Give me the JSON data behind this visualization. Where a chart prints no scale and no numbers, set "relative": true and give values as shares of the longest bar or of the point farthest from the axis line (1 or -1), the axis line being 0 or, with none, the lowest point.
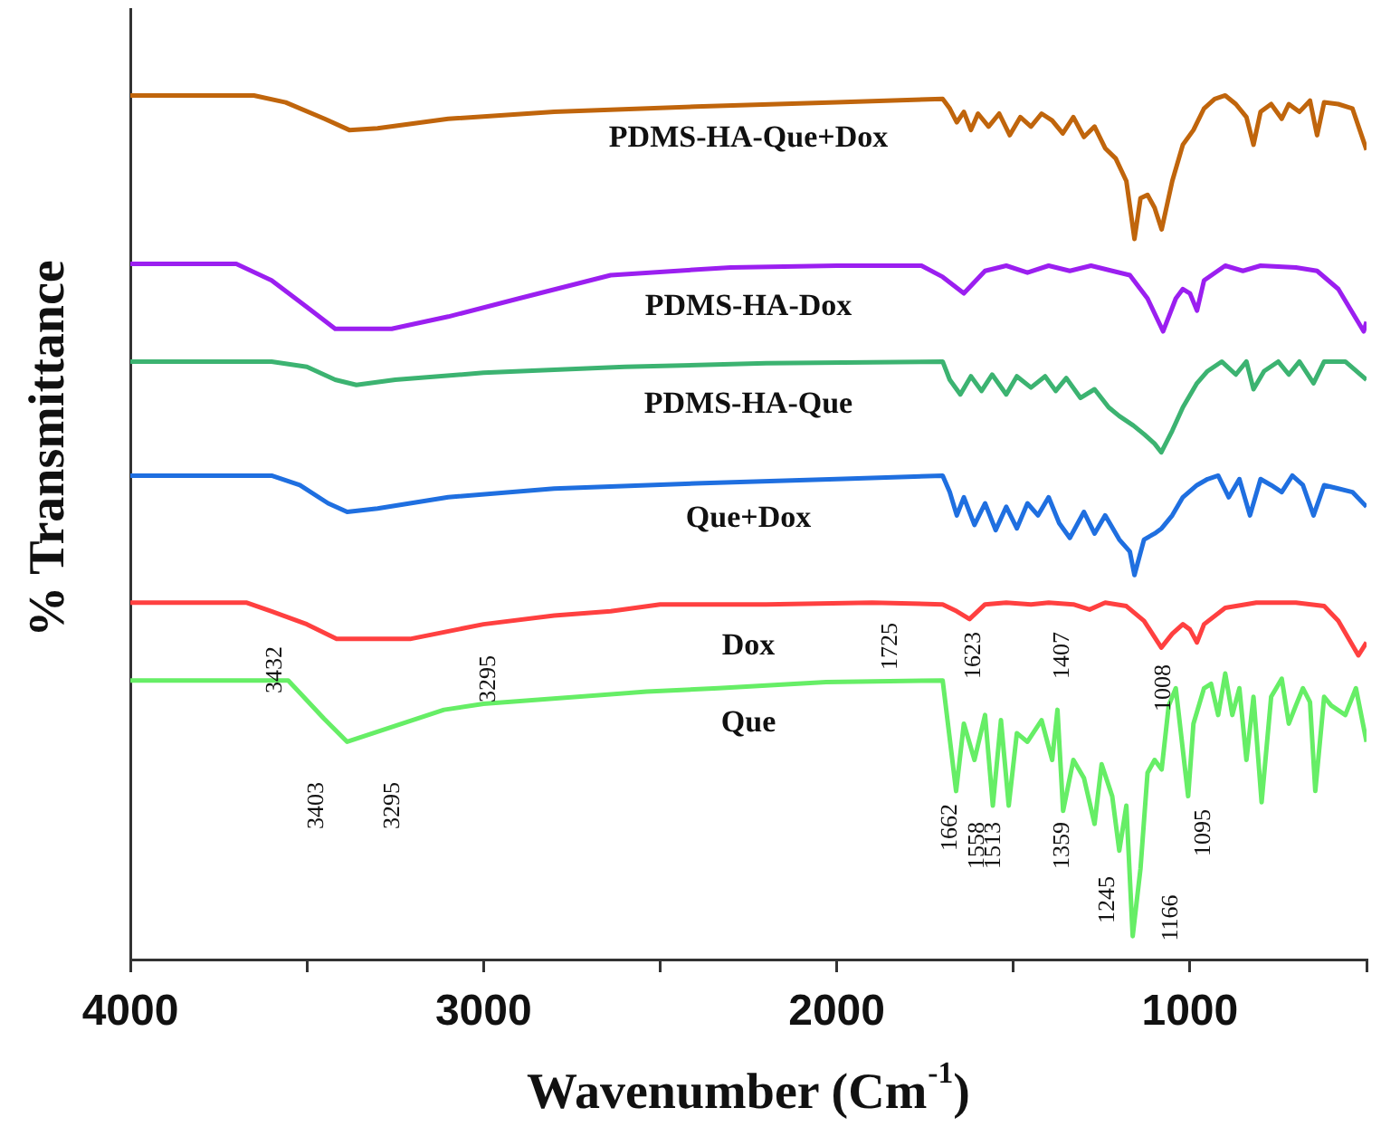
{
  "chart_data": {
    "type": "line",
    "relative": true,
    "xlabel": "Wavenumber (Cm$^{-1}$)",
    "ylabel": "% Transmittance",
    "xlim": [
      4000,
      500
    ],
    "xticks": [
      4000,
      {
        "value": 3500,
        "label": null
      },
      3000,
      {
        "value": 2500,
        "label": null
      },
      2000,
      {
        "value": 1500,
        "label": null
      },
      1000,
      {
        "value": 500,
        "label": null
      }
    ],
    "grid": false,
    "legend": false,
    "marker": "none",
    "line_style": "solid",
    "series": [
      {
        "name": "PDMS-HA-Que+Dox",
        "color": "#c0650c",
        "x": [
          4000,
          3650,
          3560,
          3450,
          3380,
          3300,
          3100,
          2800,
          2400,
          2000,
          1700,
          1680,
          1660,
          1640,
          1620,
          1600,
          1570,
          1540,
          1510,
          1480,
          1450,
          1420,
          1390,
          1360,
          1330,
          1300,
          1270,
          1240,
          1210,
          1180,
          1157,
          1140,
          1120,
          1100,
          1080,
          1050,
          1020,
          990,
          960,
          930,
          900,
          870,
          840,
          820,
          800,
          770,
          740,
          720,
          690,
          660,
          640,
          620,
          580,
          540,
          500
        ],
        "values": [
          1,
          1,
          0.992,
          0.973,
          0.96,
          0.962,
          0.973,
          0.981,
          0.987,
          0.992,
          0.996,
          0.985,
          0.969,
          0.981,
          0.96,
          0.979,
          0.964,
          0.979,
          0.954,
          0.975,
          0.964,
          0.979,
          0.971,
          0.956,
          0.975,
          0.952,
          0.964,
          0.939,
          0.927,
          0.901,
          0.834,
          0.881,
          0.885,
          0.87,
          0.845,
          0.901,
          0.943,
          0.96,
          0.985,
          0.996,
          1,
          0.99,
          0.975,
          0.943,
          0.981,
          0.99,
          0.973,
          0.99,
          0.981,
          0.994,
          0.954,
          0.992,
          0.99,
          0.985,
          0.937
        ]
      },
      {
        "name": "PDMS-HA-Dox",
        "color": "#9b1ff0",
        "x": [
          4000,
          3700,
          3600,
          3500,
          3420,
          3260,
          3100,
          2900,
          2640,
          2300,
          2000,
          1760,
          1700,
          1640,
          1580,
          1520,
          1460,
          1400,
          1340,
          1280,
          1220,
          1170,
          1120,
          1076,
          1040,
          1020,
          1000,
          980,
          960,
          900,
          850,
          800,
          700,
          640,
          580,
          508,
          500
        ],
        "values": [
          0.805,
          0.805,
          0.786,
          0.755,
          0.73,
          0.73,
          0.744,
          0.765,
          0.792,
          0.801,
          0.803,
          0.803,
          0.79,
          0.771,
          0.797,
          0.803,
          0.795,
          0.803,
          0.797,
          0.803,
          0.797,
          0.792,
          0.765,
          0.727,
          0.765,
          0.776,
          0.771,
          0.751,
          0.786,
          0.803,
          0.797,
          0.803,
          0.801,
          0.797,
          0.776,
          0.727,
          0.738
        ]
      },
      {
        "name": "PDMS-HA-Que",
        "color": "#3cb371",
        "x": [
          4000,
          3600,
          3500,
          3420,
          3360,
          3250,
          3000,
          2600,
          2200,
          1700,
          1680,
          1650,
          1620,
          1590,
          1560,
          1520,
          1490,
          1450,
          1410,
          1380,
          1350,
          1310,
          1270,
          1230,
          1200,
          1160,
          1130,
          1100,
          1081,
          1050,
          1020,
          980,
          950,
          910,
          870,
          840,
          820,
          790,
          750,
          720,
          690,
          650,
          620,
          560,
          500
        ],
        "values": [
          0.692,
          0.692,
          0.686,
          0.671,
          0.665,
          0.671,
          0.679,
          0.686,
          0.69,
          0.692,
          0.671,
          0.654,
          0.675,
          0.658,
          0.677,
          0.654,
          0.675,
          0.662,
          0.675,
          0.658,
          0.673,
          0.65,
          0.66,
          0.639,
          0.629,
          0.618,
          0.608,
          0.597,
          0.587,
          0.612,
          0.639,
          0.667,
          0.681,
          0.692,
          0.677,
          0.692,
          0.66,
          0.681,
          0.692,
          0.677,
          0.692,
          0.667,
          0.692,
          0.692,
          0.671
        ]
      },
      {
        "name": "Que+Dox",
        "color": "#1f6fe0",
        "x": [
          4000,
          3600,
          3520,
          3440,
          3386,
          3300,
          3100,
          2800,
          2400,
          2000,
          1700,
          1680,
          1660,
          1640,
          1610,
          1580,
          1550,
          1520,
          1490,
          1460,
          1430,
          1400,
          1370,
          1340,
          1300,
          1270,
          1240,
          1200,
          1170,
          1157,
          1130,
          1100,
          1080,
          1050,
          1020,
          980,
          950,
          920,
          890,
          860,
          830,
          800,
          770,
          740,
          710,
          680,
          650,
          620,
          580,
          540,
          500
        ],
        "values": [
          0.56,
          0.56,
          0.549,
          0.528,
          0.518,
          0.522,
          0.535,
          0.545,
          0.551,
          0.556,
          0.56,
          0.541,
          0.514,
          0.535,
          0.503,
          0.528,
          0.497,
          0.524,
          0.499,
          0.528,
          0.514,
          0.535,
          0.505,
          0.488,
          0.518,
          0.493,
          0.514,
          0.486,
          0.472,
          0.445,
          0.486,
          0.493,
          0.499,
          0.514,
          0.535,
          0.549,
          0.556,
          0.56,
          0.535,
          0.556,
          0.514,
          0.556,
          0.549,
          0.541,
          0.56,
          0.549,
          0.514,
          0.549,
          0.545,
          0.541,
          0.524
        ]
      },
      {
        "name": "Dox",
        "color": "#ff4040",
        "x": [
          4000,
          3670,
          3600,
          3500,
          3416,
          3208,
          3000,
          2800,
          2640,
          2500,
          2200,
          1900,
          1700,
          1660,
          1624,
          1580,
          1520,
          1450,
          1400,
          1330,
          1284,
          1240,
          1180,
          1130,
          1081,
          1050,
          1020,
          1000,
          980,
          960,
          900,
          812,
          700,
          620,
          580,
          523,
          500
        ],
        "values": [
          0.413,
          0.413,
          0.403,
          0.388,
          0.371,
          0.371,
          0.388,
          0.398,
          0.403,
          0.411,
          0.411,
          0.413,
          0.411,
          0.403,
          0.394,
          0.411,
          0.413,
          0.411,
          0.413,
          0.411,
          0.405,
          0.413,
          0.409,
          0.392,
          0.361,
          0.377,
          0.388,
          0.382,
          0.367,
          0.388,
          0.407,
          0.413,
          0.413,
          0.409,
          0.392,
          0.352,
          0.367
        ]
      },
      {
        "name": "Que",
        "color": "#66ee66",
        "x": [
          4000,
          3553,
          3452,
          3386,
          3112,
          3000,
          2538,
          2335,
          2030,
          1700,
          1662,
          1640,
          1610,
          1580,
          1558,
          1535,
          1513,
          1490,
          1460,
          1420,
          1390,
          1375,
          1359,
          1330,
          1300,
          1270,
          1250,
          1220,
          1200,
          1180,
          1162,
          1140,
          1120,
          1100,
          1080,
          1060,
          1040,
          1005,
          990,
          960,
          940,
          920,
          900,
          880,
          860,
          840,
          820,
          797,
          770,
          740,
          720,
          700,
          680,
          660,
          645,
          620,
          600,
          560,
          530,
          500
        ],
        "values": [
          0.323,
          0.323,
          0.279,
          0.252,
          0.289,
          0.296,
          0.31,
          0.314,
          0.321,
          0.323,
          0.195,
          0.273,
          0.231,
          0.283,
          0.178,
          0.277,
          0.178,
          0.262,
          0.252,
          0.277,
          0.231,
          0.289,
          0.172,
          0.231,
          0.21,
          0.157,
          0.226,
          0.189,
          0.126,
          0.178,
          0.027,
          0.105,
          0.216,
          0.231,
          0.22,
          0.294,
          0.314,
          0.189,
          0.273,
          0.314,
          0.319,
          0.283,
          0.331,
          0.283,
          0.314,
          0.231,
          0.304,
          0.182,
          0.304,
          0.325,
          0.273,
          0.294,
          0.314,
          0.298,
          0.195,
          0.304,
          0.294,
          0.283,
          0.314,
          0.252
        ]
      }
    ],
    "annotations": [
      "3432",
      "3295",
      "3403",
      "3295",
      "1725",
      "1623",
      "1407",
      "1008",
      "1662",
      "1558",
      "1513",
      "1359",
      "1245",
      "1166",
      "1095"
    ]
  }
}
